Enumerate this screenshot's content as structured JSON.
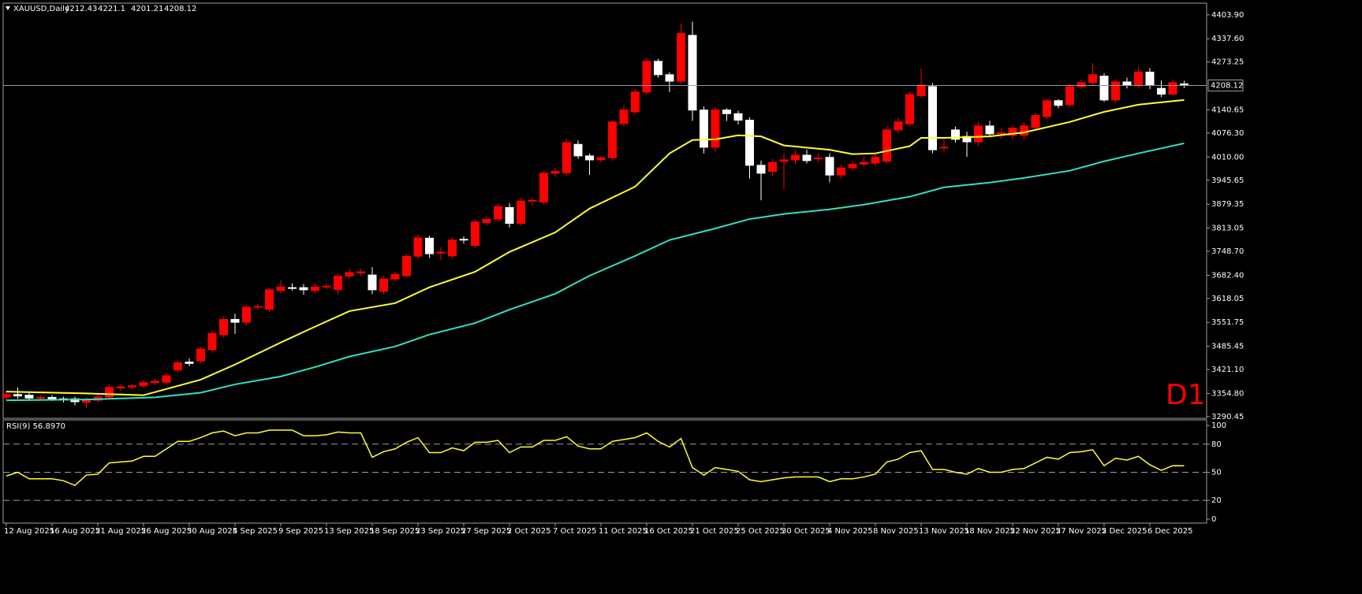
{
  "chart_data": [
    {
      "type": "candlestick",
      "title": "XAUUSD,Daily",
      "annotation": "D1",
      "annotation_color": "#ff0000",
      "categories": [
        "12 Aug 2025",
        null,
        null,
        null,
        "16 Aug 2025",
        null,
        null,
        null,
        "21 Aug 2025",
        null,
        null,
        null,
        "26 Aug 2025",
        null,
        null,
        null,
        "30 Aug 2025",
        null,
        null,
        null,
        "4 Sep 2025",
        null,
        null,
        null,
        "9 Sep 2025",
        null,
        null,
        null,
        "13 Sep 2025",
        null,
        null,
        null,
        "18 Sep 2025",
        null,
        null,
        null,
        "23 Sep 2025",
        null,
        null,
        null,
        "27 Sep 2025",
        null,
        null,
        null,
        "2 Oct 2025",
        null,
        null,
        null,
        "7 Oct 2025",
        null,
        null,
        null,
        "11 Oct 2025",
        null,
        null,
        null,
        "16 Oct 2025",
        null,
        null,
        null,
        "21 Oct 2025",
        null,
        null,
        null,
        "25 Oct 2025",
        null,
        null,
        null,
        "30 Oct 2025",
        null,
        null,
        null,
        "4 Nov 2025",
        null,
        null,
        null,
        "8 Nov 2025",
        null,
        null,
        null,
        "13 Nov 2025",
        null,
        null,
        null,
        "18 Nov 2025",
        null,
        null,
        null,
        "22 Nov 2025",
        null,
        null,
        null,
        "27 Nov 2025",
        null,
        null,
        null,
        "2 Dec 2025",
        null,
        null,
        null,
        "6 Dec 2025",
        null,
        null,
        null
      ],
      "open": [
        3345,
        3352,
        3350,
        3342,
        3344,
        3340,
        3340,
        3330,
        3336,
        3345,
        3370,
        3373,
        3376,
        3385,
        3386,
        3420,
        3442,
        3445,
        3476,
        3518,
        3560,
        3552,
        3594,
        3588,
        3640,
        3648,
        3648,
        3640,
        3650,
        3643,
        3680,
        3689,
        3683,
        3638,
        3672,
        3681,
        3735,
        3785,
        3745,
        3736,
        3782,
        3765,
        3828,
        3838,
        3870,
        3826,
        3888,
        3885,
        3965,
        3966,
        4045,
        4013,
        4002,
        4008,
        4103,
        4135,
        4190,
        4275,
        4238,
        4220,
        4347,
        4140,
        4037,
        4140,
        4130,
        4112,
        3987,
        3970,
        3998,
        4002,
        4015,
        4005,
        4009,
        3960,
        3980,
        3990,
        3993,
        3998,
        4085,
        4102,
        4180,
        4205,
        4035,
        4085,
        4067,
        4052,
        4096,
        4075,
        4070,
        4070,
        4092,
        4122,
        4166,
        4155,
        4205,
        4216,
        4234,
        4168,
        4218,
        4210,
        4245,
        4200,
        4184,
        4212.43
      ],
      "high": [
        3362,
        3372,
        3356,
        3350,
        3350,
        3346,
        3346,
        3344,
        3352,
        3380,
        3380,
        3382,
        3392,
        3396,
        3412,
        3446,
        3452,
        3484,
        3530,
        3568,
        3576,
        3600,
        3604,
        3648,
        3668,
        3660,
        3658,
        3660,
        3660,
        3688,
        3702,
        3700,
        3705,
        3680,
        3692,
        3742,
        3795,
        3792,
        3760,
        3788,
        3790,
        3836,
        3848,
        3882,
        3882,
        3896,
        3898,
        3972,
        3980,
        4060,
        4056,
        4020,
        4014,
        4112,
        4152,
        4198,
        4284,
        4282,
        4245,
        4380,
        4385,
        4150,
        4148,
        4145,
        4138,
        4120,
        4000,
        4005,
        4020,
        4030,
        4030,
        4020,
        4020,
        3990,
        3998,
        4012,
        4020,
        4095,
        4120,
        4192,
        4255,
        4215,
        4060,
        4095,
        4080,
        4108,
        4110,
        4090,
        4096,
        4105,
        4132,
        4172,
        4170,
        4212,
        4225,
        4270,
        4242,
        4226,
        4230,
        4260,
        4256,
        4222,
        4225,
        4221.1
      ],
      "low": [
        3338,
        3340,
        3335,
        3336,
        3334,
        3330,
        3322,
        3315,
        3330,
        3338,
        3362,
        3366,
        3370,
        3378,
        3380,
        3414,
        3430,
        3438,
        3468,
        3510,
        3520,
        3544,
        3586,
        3580,
        3632,
        3640,
        3628,
        3632,
        3642,
        3630,
        3672,
        3680,
        3630,
        3630,
        3664,
        3676,
        3728,
        3730,
        3725,
        3728,
        3770,
        3758,
        3820,
        3830,
        3815,
        3820,
        3876,
        3878,
        3955,
        3958,
        4005,
        3960,
        3995,
        4000,
        4095,
        4128,
        4182,
        4230,
        4190,
        4212,
        4110,
        4020,
        4025,
        4110,
        4100,
        3950,
        3890,
        3958,
        3920,
        3990,
        3992,
        3995,
        3940,
        3950,
        3972,
        3982,
        3985,
        3990,
        4075,
        4095,
        4172,
        4020,
        4025,
        4050,
        4010,
        4040,
        4065,
        4060,
        4058,
        4058,
        4085,
        4115,
        4145,
        4148,
        4198,
        4208,
        4162,
        4160,
        4200,
        4202,
        4198,
        4176,
        4180,
        4201.21
      ],
      "close": [
        3352,
        3348,
        3342,
        3344,
        3340,
        3338,
        3332,
        3336,
        3345,
        3372,
        3373,
        3376,
        3385,
        3389,
        3404,
        3440,
        3438,
        3478,
        3521,
        3560,
        3552,
        3594,
        3596,
        3642,
        3650,
        3647,
        3642,
        3650,
        3652,
        3680,
        3690,
        3692,
        3642,
        3672,
        3685,
        3735,
        3786,
        3742,
        3746,
        3780,
        3780,
        3830,
        3837,
        3873,
        3826,
        3888,
        3890,
        3965,
        3970,
        4050,
        4013,
        4002,
        4008,
        4107,
        4140,
        4190,
        4275,
        4238,
        4220,
        4352,
        4140,
        4037,
        4140,
        4130,
        4112,
        3987,
        3965,
        3995,
        4002,
        4015,
        4000,
        4007,
        3960,
        3980,
        3990,
        3995,
        4009,
        4085,
        4107,
        4183,
        4209,
        4030,
        4037,
        4059,
        4052,
        4096,
        4074,
        4077,
        4090,
        4096,
        4125,
        4166,
        4153,
        4205,
        4216,
        4238,
        4168,
        4218,
        4210,
        4245,
        4210,
        4184,
        4216,
        4208.12
      ],
      "up_color": "#ff0000",
      "down_color": "#ffffff",
      "price_line_color": "#8a9ab0",
      "lines": [
        {
          "color": "#ffff33",
          "x": [
            0,
            7,
            12,
            17,
            20,
            24,
            27,
            30,
            34,
            37,
            41,
            44,
            48,
            51,
            55,
            58,
            60,
            62,
            64,
            66,
            68,
            72,
            74,
            76,
            79,
            80,
            82,
            86,
            89,
            93,
            96,
            99,
            103
          ],
          "values": [
            3360,
            3355,
            3350,
            3393,
            3435,
            3496,
            3540,
            3583,
            3605,
            3649,
            3692,
            3747,
            3801,
            3867,
            3928,
            4020,
            4057,
            4059,
            4070,
            4067,
            4042,
            4030,
            4018,
            4020,
            4040,
            4063,
            4063,
            4067,
            4078,
            4107,
            4135,
            4155,
            4168
          ]
        },
        {
          "color": "#33e0c0",
          "x": [
            0,
            7,
            13,
            17,
            20,
            24,
            27,
            30,
            34,
            37,
            41,
            44,
            48,
            51,
            55,
            58,
            62,
            65,
            68,
            72,
            75,
            79,
            82,
            86,
            89,
            93,
            96,
            99,
            103
          ],
          "values": [
            3336,
            3338,
            3344,
            3357,
            3380,
            3402,
            3428,
            3457,
            3485,
            3518,
            3550,
            3587,
            3631,
            3681,
            3736,
            3780,
            3812,
            3838,
            3852,
            3865,
            3878,
            3900,
            3926,
            3939,
            3952,
            3972,
            3998,
            4020,
            4048
          ]
        }
      ],
      "ylim": [
        3286,
        4434
      ],
      "yticks": [
        {
          "value": 4403.9,
          "label": "4403.90"
        },
        {
          "value": 4337.6,
          "label": "4337.60"
        },
        4273.25,
        4140.65,
        {
          "value": 4076.3,
          "label": "4076.30"
        },
        {
          "value": 4010,
          "label": "4010.00"
        },
        3945.65,
        3879.35,
        3813.05,
        {
          "value": 3748.7,
          "label": "3748.70"
        },
        {
          "value": 3682.4,
          "label": "3682.40"
        },
        3618.05,
        3551.75,
        3485.45,
        {
          "value": 3421.1,
          "label": "3421.10"
        },
        {
          "value": 3354.8,
          "label": "3354.80"
        },
        3290.45
      ]
    },
    {
      "type": "line",
      "title": "RSI(9) 56.8970",
      "color": "#ffff33",
      "values": [
        46,
        50,
        43,
        43,
        43,
        41,
        36,
        47,
        48,
        60,
        61,
        62,
        67,
        67,
        75,
        83,
        83,
        87,
        92,
        94,
        89,
        92,
        92,
        95,
        95,
        95,
        89,
        89,
        90,
        93,
        92,
        92,
        66,
        72,
        75,
        82,
        87,
        71,
        71,
        76,
        73,
        82,
        82,
        84,
        71,
        77,
        77,
        84,
        84,
        88,
        78,
        75,
        75,
        83,
        85,
        87,
        92,
        83,
        77,
        86,
        55,
        47,
        55,
        53,
        51,
        42,
        40,
        42,
        44,
        45,
        45,
        45,
        40,
        43,
        43,
        45,
        48,
        61,
        64,
        71,
        73,
        53,
        53,
        50,
        48,
        54,
        50,
        50,
        53,
        54,
        60,
        66,
        64,
        71,
        72,
        74,
        57,
        65,
        63,
        67,
        58,
        52,
        57,
        56.897
      ],
      "ylim": [
        -3.4,
        105.9
      ],
      "yticks": [
        100,
        80,
        50,
        20,
        0
      ],
      "levels": [
        20,
        50,
        80
      ],
      "level_color": "#a0a0a0"
    }
  ]
}
